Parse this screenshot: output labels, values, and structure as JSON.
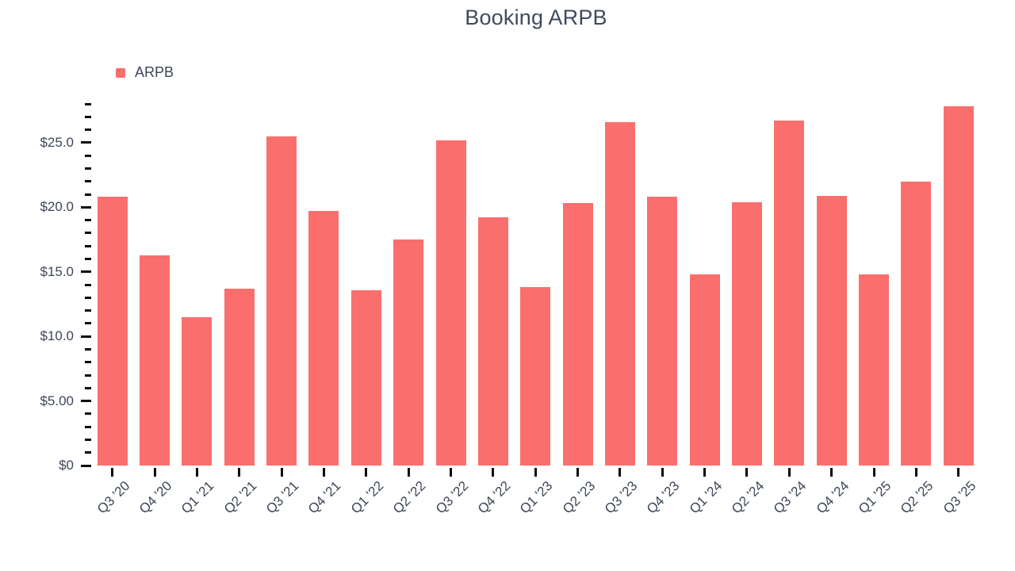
{
  "chart_data": {
    "type": "bar",
    "title": "Booking ARPB",
    "xlabel": "",
    "ylabel": "",
    "legend_position": "top-left",
    "grid": "off",
    "legend": [
      {
        "name": "ARPB",
        "color": "#FB6E6E"
      }
    ],
    "categories": [
      "Q3 '20",
      "Q4 '20",
      "Q1 '21",
      "Q2 '21",
      "Q3 '21",
      "Q4 '21",
      "Q1 '22",
      "Q2 '22",
      "Q3 '22",
      "Q4 '22",
      "Q1 '23",
      "Q2 '23",
      "Q3 '23",
      "Q4 '23",
      "Q1 '24",
      "Q2 '24",
      "Q3 '24",
      "Q4 '24",
      "Q1 '25",
      "Q2 '25",
      "Q3 '25"
    ],
    "series": [
      {
        "name": "ARPB",
        "values": [
          20.8,
          16.3,
          11.5,
          13.7,
          25.5,
          19.7,
          13.6,
          17.5,
          25.2,
          19.2,
          13.8,
          20.3,
          26.6,
          20.8,
          14.8,
          20.4,
          26.7,
          20.9,
          14.8,
          22.0,
          27.8
        ]
      }
    ],
    "ylim": [
      0,
      28
    ],
    "y_minor_tick_step": 1,
    "y_major_tick_step": 5,
    "y_major_tick_labels": [
      {
        "value": 0,
        "label": "$0"
      },
      {
        "value": 5,
        "label": "$5.00"
      },
      {
        "value": 10,
        "label": "$10.0"
      },
      {
        "value": 15,
        "label": "$15.0"
      },
      {
        "value": 20,
        "label": "$20.0"
      },
      {
        "value": 25,
        "label": "$25.0"
      }
    ],
    "colors": {
      "bar": "#FB6E6E",
      "title_text": "#3F4B5D",
      "axis_text": "#3D4758",
      "tick_mark": "#0B0B0B",
      "background": "#FFFFFF"
    }
  }
}
